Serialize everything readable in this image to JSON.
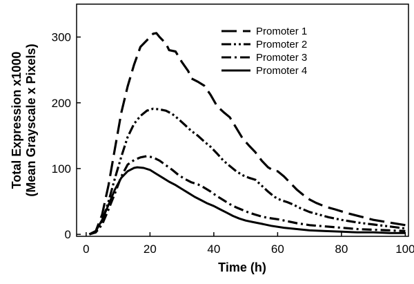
{
  "chart_data": {
    "type": "line",
    "title": "",
    "xlabel": "Time (h)",
    "ylabel_lines": [
      "Total Expression x1000",
      "(Mean Grayscale x Pixels)"
    ],
    "xlim": [
      -3,
      101
    ],
    "ylim": [
      -3,
      350
    ],
    "xticks": [
      0,
      20,
      40,
      60,
      80,
      100
    ],
    "yticks": [
      0,
      100,
      200,
      300
    ],
    "grid": false,
    "legend_position": "top-right",
    "series": [
      {
        "name": "Promoter 1",
        "style": "long-dash",
        "color": "#000000",
        "points": [
          [
            1,
            0
          ],
          [
            3,
            5
          ],
          [
            5,
            30
          ],
          [
            7,
            75
          ],
          [
            9,
            130
          ],
          [
            11,
            185
          ],
          [
            13,
            225
          ],
          [
            15,
            258
          ],
          [
            17,
            285
          ],
          [
            19,
            295
          ],
          [
            21,
            305
          ],
          [
            22,
            306
          ],
          [
            23,
            300
          ],
          [
            25,
            290
          ],
          [
            26,
            280
          ],
          [
            28,
            278
          ],
          [
            30,
            262
          ],
          [
            32,
            248
          ],
          [
            33,
            237
          ],
          [
            35,
            232
          ],
          [
            37,
            226
          ],
          [
            39,
            212
          ],
          [
            41,
            195
          ],
          [
            43,
            186
          ],
          [
            45,
            178
          ],
          [
            47,
            162
          ],
          [
            49,
            146
          ],
          [
            51,
            135
          ],
          [
            53,
            125
          ],
          [
            55,
            112
          ],
          [
            57,
            102
          ],
          [
            59,
            96
          ],
          [
            60,
            96
          ],
          [
            62,
            88
          ],
          [
            64,
            78
          ],
          [
            66,
            68
          ],
          [
            68,
            60
          ],
          [
            70,
            53
          ],
          [
            72,
            48
          ],
          [
            75,
            42
          ],
          [
            78,
            38
          ],
          [
            82,
            32
          ],
          [
            86,
            27
          ],
          [
            90,
            22
          ],
          [
            95,
            18
          ],
          [
            100,
            14
          ]
        ]
      },
      {
        "name": "Promoter 2",
        "style": "dash-dot-dot",
        "color": "#000000",
        "points": [
          [
            1,
            0
          ],
          [
            3,
            4
          ],
          [
            5,
            20
          ],
          [
            7,
            50
          ],
          [
            9,
            85
          ],
          [
            11,
            118
          ],
          [
            13,
            148
          ],
          [
            15,
            168
          ],
          [
            17,
            180
          ],
          [
            19,
            188
          ],
          [
            21,
            191
          ],
          [
            23,
            190
          ],
          [
            25,
            188
          ],
          [
            27,
            183
          ],
          [
            29,
            175
          ],
          [
            31,
            166
          ],
          [
            33,
            157
          ],
          [
            35,
            150
          ],
          [
            37,
            141
          ],
          [
            39,
            133
          ],
          [
            41,
            123
          ],
          [
            43,
            112
          ],
          [
            45,
            104
          ],
          [
            47,
            96
          ],
          [
            49,
            90
          ],
          [
            51,
            86
          ],
          [
            53,
            83
          ],
          [
            55,
            74
          ],
          [
            57,
            65
          ],
          [
            59,
            57
          ],
          [
            61,
            52
          ],
          [
            63,
            49
          ],
          [
            65,
            45
          ],
          [
            67,
            40
          ],
          [
            70,
            34
          ],
          [
            73,
            30
          ],
          [
            76,
            26
          ],
          [
            80,
            22
          ],
          [
            85,
            18
          ],
          [
            90,
            15
          ],
          [
            95,
            12
          ],
          [
            100,
            9
          ]
        ]
      },
      {
        "name": "Promoter 3",
        "style": "dash-dot",
        "color": "#000000",
        "points": [
          [
            1,
            0
          ],
          [
            3,
            3
          ],
          [
            5,
            15
          ],
          [
            7,
            38
          ],
          [
            9,
            62
          ],
          [
            11,
            88
          ],
          [
            13,
            106
          ],
          [
            15,
            113
          ],
          [
            17,
            117
          ],
          [
            19,
            119
          ],
          [
            21,
            117
          ],
          [
            23,
            112
          ],
          [
            25,
            105
          ],
          [
            27,
            98
          ],
          [
            29,
            90
          ],
          [
            31,
            84
          ],
          [
            33,
            79
          ],
          [
            35,
            76
          ],
          [
            37,
            71
          ],
          [
            39,
            65
          ],
          [
            41,
            58
          ],
          [
            43,
            52
          ],
          [
            45,
            46
          ],
          [
            47,
            41
          ],
          [
            49,
            37
          ],
          [
            51,
            33
          ],
          [
            53,
            30
          ],
          [
            55,
            27
          ],
          [
            57,
            25
          ],
          [
            60,
            23
          ],
          [
            63,
            20
          ],
          [
            66,
            17
          ],
          [
            70,
            14
          ],
          [
            75,
            12
          ],
          [
            80,
            10
          ],
          [
            85,
            8
          ],
          [
            90,
            7
          ],
          [
            95,
            6
          ],
          [
            100,
            5
          ]
        ]
      },
      {
        "name": "Promoter 4",
        "style": "solid",
        "color": "#000000",
        "points": [
          [
            1,
            0
          ],
          [
            3,
            5
          ],
          [
            5,
            22
          ],
          [
            7,
            45
          ],
          [
            9,
            68
          ],
          [
            11,
            86
          ],
          [
            13,
            96
          ],
          [
            15,
            101
          ],
          [
            16,
            102
          ],
          [
            18,
            101
          ],
          [
            20,
            98
          ],
          [
            22,
            92
          ],
          [
            24,
            86
          ],
          [
            26,
            80
          ],
          [
            28,
            75
          ],
          [
            30,
            69
          ],
          [
            32,
            63
          ],
          [
            34,
            57
          ],
          [
            36,
            52
          ],
          [
            38,
            47
          ],
          [
            40,
            43
          ],
          [
            42,
            38
          ],
          [
            44,
            33
          ],
          [
            46,
            28
          ],
          [
            48,
            24
          ],
          [
            50,
            21
          ],
          [
            52,
            19
          ],
          [
            55,
            16
          ],
          [
            58,
            13
          ],
          [
            62,
            10
          ],
          [
            66,
            8
          ],
          [
            70,
            6
          ],
          [
            75,
            5
          ],
          [
            80,
            4
          ],
          [
            85,
            3
          ],
          [
            90,
            3
          ],
          [
            95,
            2
          ],
          [
            100,
            2
          ]
        ]
      }
    ]
  }
}
